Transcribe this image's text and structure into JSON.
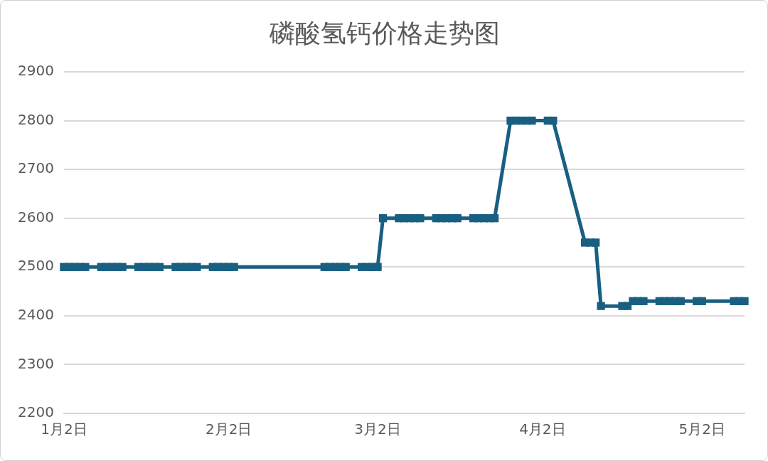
{
  "chart_data": {
    "type": "line",
    "title": "磷酸氢钙价格走势图",
    "x": [
      "--01-02",
      "--01-03",
      "--01-04",
      "--01-05",
      "--01-06",
      "--01-09",
      "--01-10",
      "--01-11",
      "--01-12",
      "--01-13",
      "--01-16",
      "--01-17",
      "--01-18",
      "--01-19",
      "--01-20",
      "--01-23",
      "--01-24",
      "--01-25",
      "--01-26",
      "--01-27",
      "--01-30",
      "--01-31",
      "--02-01",
      "--02-02",
      "--02-03",
      "--02-20",
      "--02-21",
      "--02-22",
      "--02-23",
      "--02-24",
      "--02-27",
      "--02-28",
      "--03-01",
      "--03-02",
      "--03-03",
      "--03-06",
      "--03-07",
      "--03-08",
      "--03-09",
      "--03-10",
      "--03-13",
      "--03-14",
      "--03-15",
      "--03-16",
      "--03-17",
      "--03-20",
      "--03-21",
      "--03-22",
      "--03-23",
      "--03-24",
      "--03-27",
      "--03-28",
      "--03-29",
      "--03-30",
      "--03-31",
      "--04-03",
      "--04-04",
      "--04-10",
      "--04-11",
      "--04-12",
      "--04-13",
      "--04-17",
      "--04-18",
      "--04-19",
      "--04-20",
      "--04-21",
      "--04-24",
      "--04-25",
      "--04-26",
      "--04-27",
      "--04-28",
      "--05-01",
      "--05-02",
      "--05-08",
      "--05-09",
      "--05-10"
    ],
    "series": [
      {
        "color": "#185f82",
        "values": [
          2500,
          2500,
          2500,
          2500,
          2500,
          2500,
          2500,
          2500,
          2500,
          2500,
          2500,
          2500,
          2500,
          2500,
          2500,
          2500,
          2500,
          2500,
          2500,
          2500,
          2500,
          2500,
          2500,
          2500,
          2500,
          2500,
          2500,
          2500,
          2500,
          2500,
          2500,
          2500,
          2500,
          2500,
          2600,
          2600,
          2600,
          2600,
          2600,
          2600,
          2600,
          2600,
          2600,
          2600,
          2600,
          2600,
          2600,
          2600,
          2600,
          2600,
          2800,
          2800,
          2800,
          2800,
          2800,
          2800,
          2800,
          2550,
          2550,
          2550,
          2420,
          2420,
          2420,
          2430,
          2430,
          2430,
          2430,
          2430,
          2430,
          2430,
          2430,
          2430,
          2430,
          2430,
          2430,
          2430
        ]
      }
    ],
    "xlim": [
      "--01-02",
      "--05-10"
    ],
    "xticks": [
      {
        "value": "--01-02",
        "label": "1月2日"
      },
      {
        "value": "--02-02",
        "label": "2月2日"
      },
      {
        "value": "--03-02",
        "label": "3月2日"
      },
      {
        "value": "--04-02",
        "label": "4月2日"
      },
      {
        "value": "--05-02",
        "label": "5月2日"
      }
    ],
    "ylim": [
      2200,
      2900
    ],
    "yticks": [
      2200,
      2300,
      2400,
      2500,
      2600,
      2700,
      2800,
      2900
    ],
    "grid": "y",
    "legend": false,
    "marker": "square",
    "line_style": "solid"
  }
}
